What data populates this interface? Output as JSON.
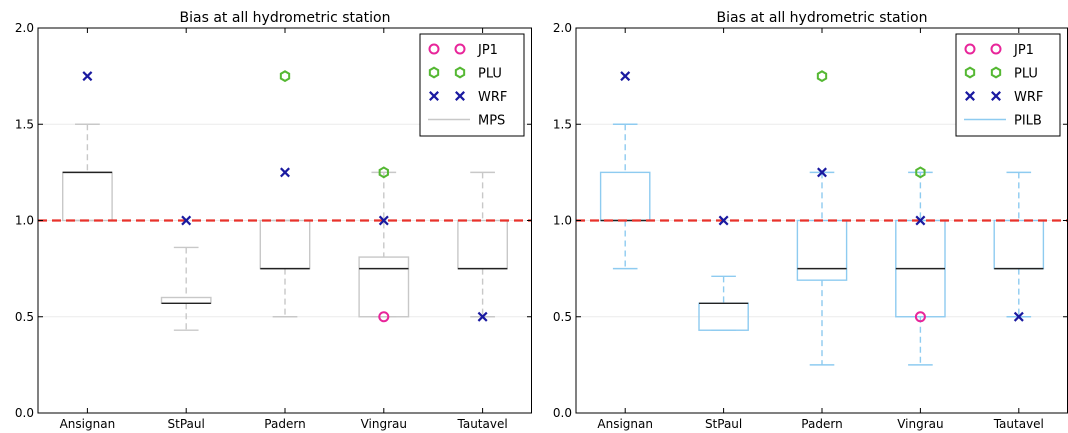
{
  "chart_data": [
    {
      "type": "box",
      "title": "Bias at all hydrometric station",
      "categories": [
        "Ansignan",
        "StPaul",
        "Padern",
        "Vingrau",
        "Tautavel"
      ],
      "ylim": [
        0.0,
        2.0
      ],
      "yticks": [
        0.0,
        0.5,
        1.0,
        1.5,
        2.0
      ],
      "ytick_labels": [
        "0.0",
        "0.5",
        "1.0",
        "1.5",
        "2.0"
      ],
      "reference_line": 1.0,
      "grid": "horizontal",
      "legend_position": "top-right",
      "box_series": {
        "name": "MPS",
        "color": "#c8c8c8",
        "boxes": [
          {
            "whislo": 1.0,
            "q1": 1.0,
            "med": 1.25,
            "q3": 1.25,
            "whishi": 1.5
          },
          {
            "whislo": 0.43,
            "q1": 0.57,
            "med": 0.57,
            "q3": 0.6,
            "whishi": 0.86
          },
          {
            "whislo": 0.5,
            "q1": 0.75,
            "med": 0.75,
            "q3": 1.0,
            "whishi": 1.0
          },
          {
            "whislo": 0.5,
            "q1": 0.5,
            "med": 0.75,
            "q3": 0.81,
            "whishi": 1.25
          },
          {
            "whislo": 0.5,
            "q1": 0.75,
            "med": 0.75,
            "q3": 1.0,
            "whishi": 1.25
          }
        ]
      },
      "point_series": [
        {
          "name": "JP1",
          "marker": "circle",
          "color": "#e8259a",
          "values": [
            null,
            null,
            null,
            0.5,
            null
          ]
        },
        {
          "name": "PLU",
          "marker": "hexagon",
          "color": "#55b833",
          "values": [
            null,
            null,
            1.75,
            1.25,
            null
          ]
        },
        {
          "name": "WRF",
          "marker": "x",
          "color": "#1a1aa0",
          "values": [
            1.75,
            1.0,
            1.25,
            1.0,
            0.5
          ]
        }
      ]
    },
    {
      "type": "box",
      "title": "Bias at all hydrometric station",
      "categories": [
        "Ansignan",
        "StPaul",
        "Padern",
        "Vingrau",
        "Tautavel"
      ],
      "ylim": [
        0.0,
        2.0
      ],
      "yticks": [
        0.0,
        0.5,
        1.0,
        1.5,
        2.0
      ],
      "ytick_labels": [
        "0.0",
        "0.5",
        "1.0",
        "1.5",
        "2.0"
      ],
      "reference_line": 1.0,
      "grid": "horizontal",
      "legend_position": "top-right",
      "box_series": {
        "name": "PILB",
        "color": "#8ecbf0",
        "boxes": [
          {
            "whislo": 0.75,
            "q1": 1.0,
            "med": 1.0,
            "q3": 1.25,
            "whishi": 1.5
          },
          {
            "whislo": 0.43,
            "q1": 0.43,
            "med": 0.57,
            "q3": 0.57,
            "whishi": 0.71
          },
          {
            "whislo": 0.25,
            "q1": 0.69,
            "med": 0.75,
            "q3": 1.0,
            "whishi": 1.25
          },
          {
            "whislo": 0.25,
            "q1": 0.5,
            "med": 0.75,
            "q3": 1.0,
            "whishi": 1.25
          },
          {
            "whislo": 0.5,
            "q1": 0.75,
            "med": 0.75,
            "q3": 1.0,
            "whishi": 1.25
          }
        ]
      },
      "point_series": [
        {
          "name": "JP1",
          "marker": "circle",
          "color": "#e8259a",
          "values": [
            null,
            null,
            null,
            0.5,
            null
          ]
        },
        {
          "name": "PLU",
          "marker": "hexagon",
          "color": "#55b833",
          "values": [
            null,
            null,
            1.75,
            1.25,
            null
          ]
        },
        {
          "name": "WRF",
          "marker": "x",
          "color": "#1a1aa0",
          "values": [
            1.75,
            1.0,
            1.25,
            1.0,
            0.5
          ]
        }
      ]
    }
  ]
}
